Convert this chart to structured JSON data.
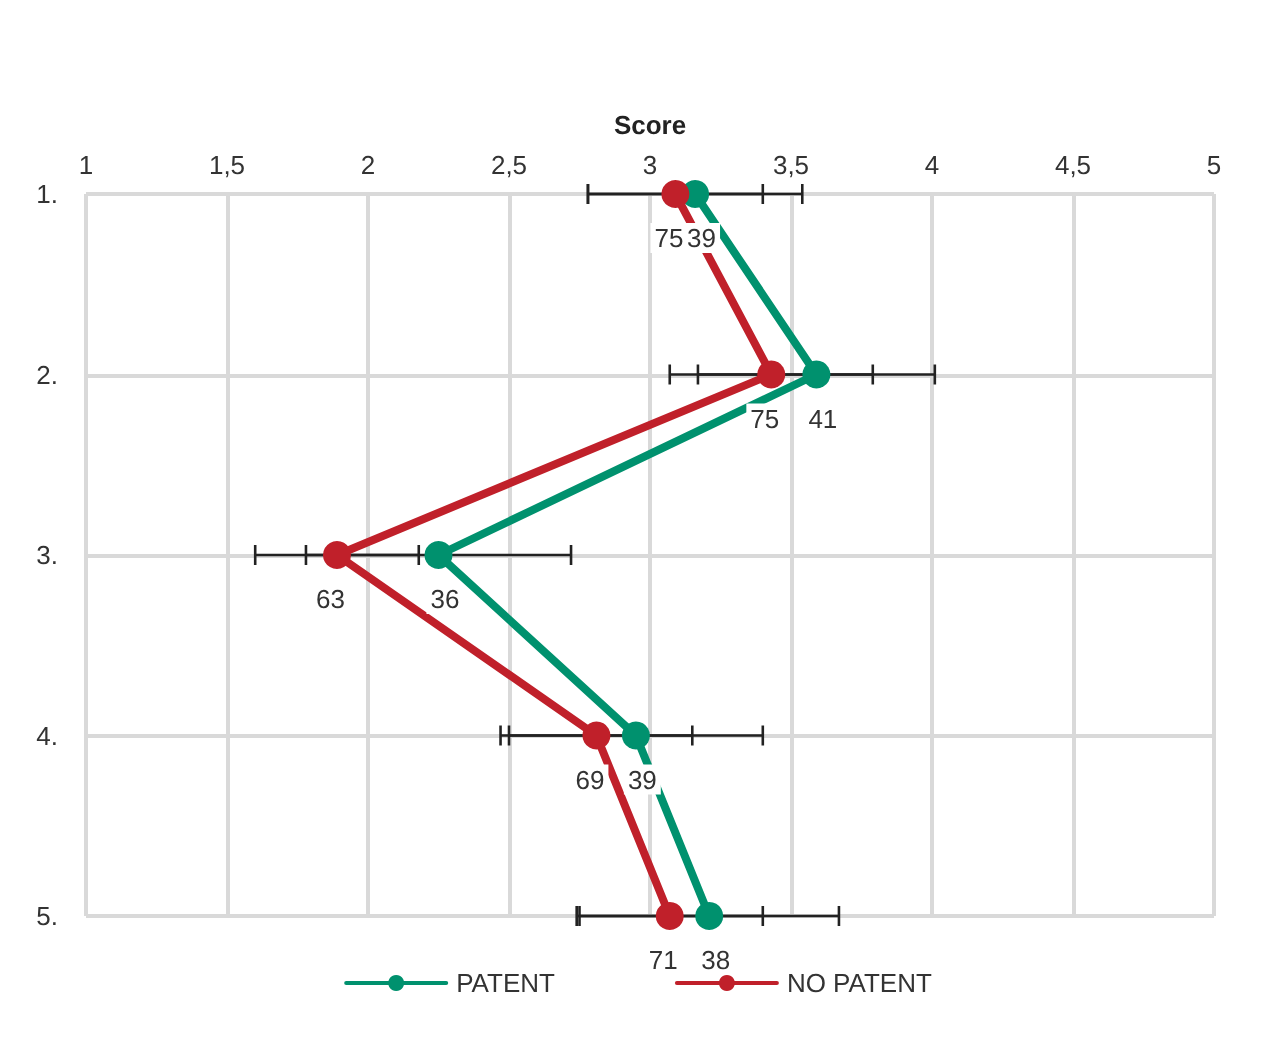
{
  "chart_data": {
    "type": "line",
    "orientation": "horizontal",
    "xlabel": "Score",
    "categories": [
      "1.",
      "2.",
      "3.",
      "4.",
      "5."
    ],
    "xlim": [
      1,
      5
    ],
    "xticks": [
      1,
      {
        "value": 1.5,
        "label": "1,5"
      },
      2,
      {
        "value": 2.5,
        "label": "2,5"
      },
      3,
      {
        "value": 3.5,
        "label": "3,5"
      },
      4,
      {
        "value": 4.5,
        "label": "4,5"
      },
      5
    ],
    "series": [
      {
        "name": "PATENT",
        "color": "#00916e",
        "values": [
          3.16,
          3.59,
          2.25,
          2.95,
          3.21
        ],
        "errors": [
          0.38,
          0.42,
          0.47,
          0.45,
          0.46
        ]
      },
      {
        "name": "NO PATENT",
        "color": "#c0202a",
        "values": [
          3.09,
          3.43,
          1.89,
          2.81,
          3.07
        ],
        "errors": [
          0.31,
          0.36,
          0.29,
          0.34,
          0.33
        ]
      }
    ],
    "annotations": [
      {
        "text": "39",
        "x": 3.16,
        "y": "1."
      },
      {
        "text": "75",
        "x": 3.09,
        "y": "1."
      },
      {
        "text": "41",
        "x": 3.59,
        "y": "2."
      },
      {
        "text": "75",
        "x": 3.43,
        "y": "2."
      },
      {
        "text": "36",
        "x": 2.25,
        "y": "3."
      },
      {
        "text": "63",
        "x": 1.89,
        "y": "3."
      },
      {
        "text": "39",
        "x": 2.95,
        "y": "4."
      },
      {
        "text": "69",
        "x": 2.81,
        "y": "4."
      },
      {
        "text": "38",
        "x": 3.21,
        "y": "5."
      },
      {
        "text": "71",
        "x": 3.07,
        "y": "5."
      }
    ],
    "grid": true,
    "legend": "bottom",
    "marker": "circle",
    "line_style": "solid"
  }
}
